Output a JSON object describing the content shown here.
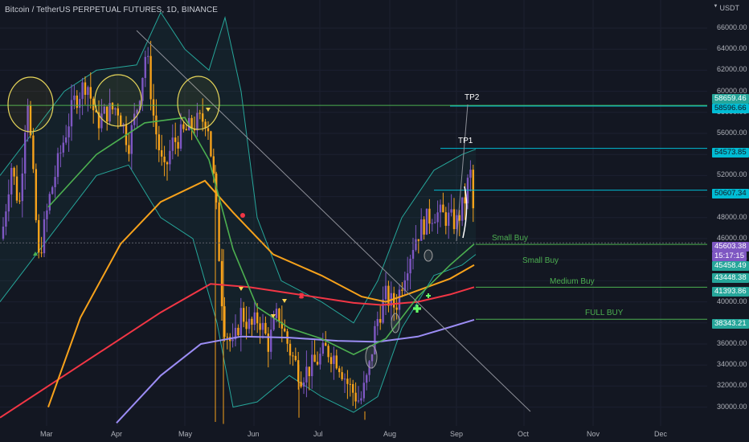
{
  "header": {
    "symbol_title": "Bitcoin / TetherUS PERPETUAL FUTURES, 1D, BINANCE",
    "currency": "USDT"
  },
  "chart_data": {
    "type": "candlestick",
    "title": "Bitcoin / TetherUS PERPETUAL FUTURES, 1D, BINANCE",
    "y_ticks": [
      "66000.00",
      "64000.00",
      "62000.00",
      "60000.00",
      "58000.00",
      "56000.00",
      "54000.00",
      "52000.00",
      "50000.00",
      "48000.00",
      "46000.00",
      "44000.00",
      "42000.00",
      "40000.00",
      "38000.00",
      "36000.00",
      "34000.00",
      "32000.00",
      "30000.00"
    ],
    "x_ticks": [
      "Mar",
      "Apr",
      "May",
      "Jun",
      "Jul",
      "Aug",
      "Sep",
      "Oct",
      "Nov",
      "Dec"
    ],
    "ylim": [
      28500,
      67500
    ],
    "price_tags": [
      {
        "name": "tp2-level-top",
        "value": "58659.46",
        "bg": "#26a69a",
        "fg": "#ffffff"
      },
      {
        "name": "tp2-level",
        "value": "58596.66",
        "bg": "#00bcd4",
        "fg": "#131722"
      },
      {
        "name": "tp1-level",
        "value": "54573.85",
        "bg": "#00bcd4",
        "fg": "#131722"
      },
      {
        "name": "resistance-level",
        "value": "50607.34",
        "bg": "#00bcd4",
        "fg": "#131722"
      },
      {
        "name": "last-price",
        "value": "45603.38",
        "bg": "#7e57c2",
        "fg": "#ffffff"
      },
      {
        "name": "countdown",
        "value": "15:17:15",
        "bg": "#7e57c2",
        "fg": "#ffffff"
      },
      {
        "name": "small-buy-2-level",
        "value": "45458.49",
        "bg": "#26a69a",
        "fg": "#ffffff"
      },
      {
        "name": "ma-orange-level",
        "value": "43448.38",
        "bg": "#26a69a",
        "fg": "#ffffff"
      },
      {
        "name": "medium-buy-level",
        "value": "41393.86",
        "bg": "#26a69a",
        "fg": "#ffffff"
      },
      {
        "name": "full-buy-level",
        "value": "38343.21",
        "bg": "#26a69a",
        "fg": "#ffffff"
      }
    ],
    "annotations": {
      "tp2": "TP2",
      "tp1": "TP1",
      "small_buy_1": "Small Buy",
      "small_buy_2": "Small Buy",
      "medium_buy": "Medium Buy",
      "full_buy": "FULL BUY"
    },
    "colors": {
      "background": "#131722",
      "bull": "#7e57c2",
      "bear": "#f7a21b",
      "ma_orange": "#f7a21b",
      "ma_red": "#f23645",
      "ma_purple": "#9c8df5",
      "ma_green": "#4caf50",
      "band": "#26a69a",
      "levels_cyan": "#00bcd4",
      "levels_green": "#4caf50"
    }
  }
}
